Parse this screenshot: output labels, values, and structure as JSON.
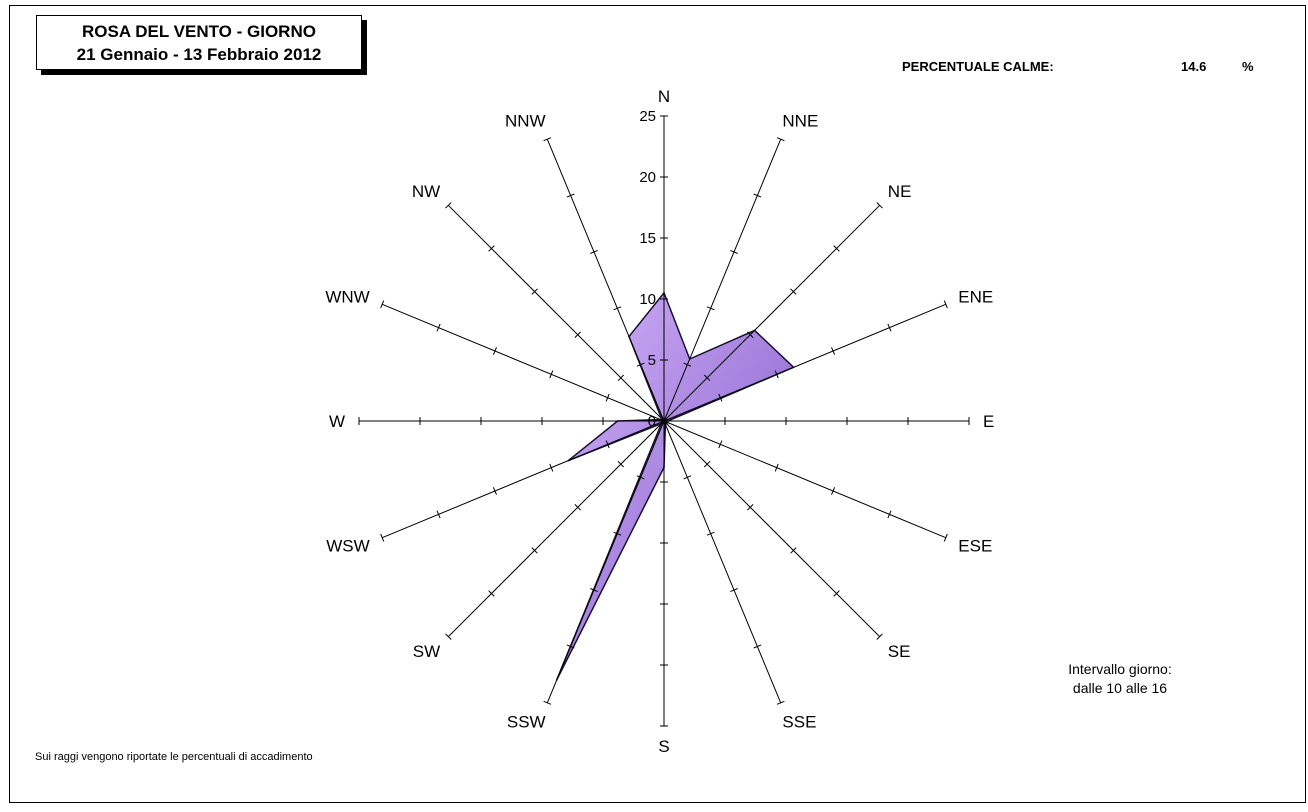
{
  "title": {
    "line1": "ROSA DEL VENTO - GIORNO",
    "line2": "21 Gennaio - 13 Febbraio 2012"
  },
  "calme": {
    "label": "PERCENTUALE CALME:",
    "value": "14.6",
    "unit": "%"
  },
  "interval_note": {
    "line1": "Intervallo giorno:",
    "line2": "dalle 10 alle 16"
  },
  "footer_note": "Sui raggi vengono riportate le percentuali di accadimento",
  "colors": {
    "fill_light": "#c9a4f2",
    "fill_dark": "#7b55c4",
    "outline": "#1a1030",
    "axis": "#000000"
  },
  "chart_data": {
    "type": "radar",
    "directions": [
      "N",
      "NNE",
      "NE",
      "ENE",
      "E",
      "ESE",
      "SE",
      "SSE",
      "S",
      "SSW",
      "SW",
      "WSW",
      "W",
      "WNW",
      "NW",
      "NNW"
    ],
    "values": [
      10.5,
      5.5,
      10.5,
      11.5,
      0.3,
      0.3,
      0.3,
      0.3,
      3.8,
      23.0,
      0.3,
      8.5,
      3.8,
      0.3,
      0.3,
      7.5
    ],
    "rlim": [
      0,
      25
    ],
    "r_ticks": [
      0,
      5,
      10,
      15,
      20,
      25
    ],
    "tick_labels": [
      "0",
      "5",
      "10",
      "15",
      "20",
      "25"
    ]
  }
}
